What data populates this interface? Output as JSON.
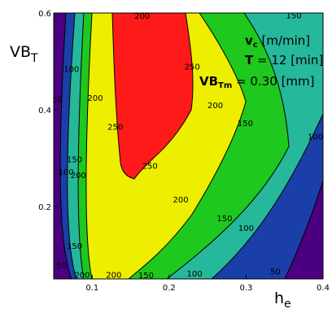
{
  "chart_data": {
    "type": "contour",
    "title": "",
    "xlabel": "h",
    "xlabel_sub": "e",
    "ylabel": "VB",
    "ylabel_sub": "T",
    "xlim": [
      0.05,
      0.4
    ],
    "ylim": [
      0.05,
      0.6
    ],
    "x_ticks": [
      0.1,
      0.2,
      0.3,
      0.4
    ],
    "x_tick_labels": [
      "0.1",
      "0.2",
      "0.3",
      "0.4"
    ],
    "y_ticks": [
      0.2,
      0.4,
      0.6
    ],
    "y_tick_labels": [
      "0.2",
      "0.4",
      "0.6"
    ],
    "contour_levels": [
      50,
      100,
      150,
      200,
      250
    ],
    "contour_labels": [
      {
        "text": "200",
        "x": 0.165,
        "y": 0.595
      },
      {
        "text": "250",
        "x": 0.23,
        "y": 0.49
      },
      {
        "text": "250",
        "x": 0.13,
        "y": 0.365
      },
      {
        "text": "250",
        "x": 0.175,
        "y": 0.285
      },
      {
        "text": "200",
        "x": 0.104,
        "y": 0.425
      },
      {
        "text": "200",
        "x": 0.26,
        "y": 0.41
      },
      {
        "text": "200",
        "x": 0.082,
        "y": 0.265
      },
      {
        "text": "200",
        "x": 0.215,
        "y": 0.215
      },
      {
        "text": "200",
        "x": 0.087,
        "y": 0.059
      },
      {
        "text": "200",
        "x": 0.128,
        "y": 0.059
      },
      {
        "text": "150",
        "x": 0.362,
        "y": 0.596
      },
      {
        "text": "150",
        "x": 0.299,
        "y": 0.373
      },
      {
        "text": "150",
        "x": 0.077,
        "y": 0.298
      },
      {
        "text": "150",
        "x": 0.272,
        "y": 0.176
      },
      {
        "text": "150",
        "x": 0.077,
        "y": 0.119
      },
      {
        "text": "150",
        "x": 0.17,
        "y": 0.058
      },
      {
        "text": "100",
        "x": 0.073,
        "y": 0.485
      },
      {
        "text": "100",
        "x": 0.066,
        "y": 0.272
      },
      {
        "text": "100",
        "x": 0.39,
        "y": 0.345
      },
      {
        "text": "100",
        "x": 0.3,
        "y": 0.156
      },
      {
        "text": "100",
        "x": 0.233,
        "y": 0.062
      },
      {
        "text": "50",
        "x": 0.055,
        "y": 0.422
      },
      {
        "text": "50",
        "x": 0.06,
        "y": 0.079
      },
      {
        "text": "50",
        "x": 0.338,
        "y": 0.066
      }
    ],
    "band_colors": [
      "#4a0080",
      "#1a3fa8",
      "#26b89a",
      "#1ec81e",
      "#eeee00",
      "#ff1a1a"
    ],
    "annotation": {
      "line1_var": "v",
      "line1_sub": "c",
      "line1_rest": " [m/min]",
      "line2_var": "T",
      "line2_rest": " = 12 [min]",
      "line3_var": "VB",
      "line3_sub": "Tm",
      "line3_rest": " = 0.30 [mm]"
    }
  }
}
